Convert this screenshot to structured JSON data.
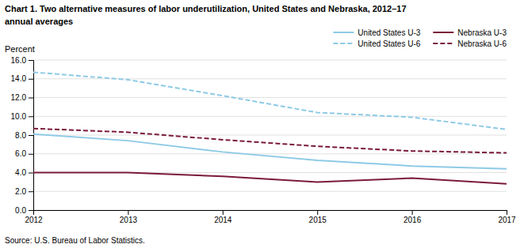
{
  "chart_data": {
    "type": "line",
    "title": "Chart 1. Two alternative measures of labor underutilization, United States and Nebraska, 2012–17",
    "subtitle": "annual averages",
    "ylabel": "Percent",
    "annotations": [
      "Source: U.S. Bureau of Labor Statistics."
    ],
    "x": [
      2012,
      2013,
      2014,
      2015,
      2016,
      2017
    ],
    "xlim": [
      2012,
      2017
    ],
    "xticks": [
      2012,
      2013,
      2014,
      2015,
      2016,
      2017
    ],
    "ylim": [
      0.0,
      16.0
    ],
    "yticks": [
      {
        "value": 0.0,
        "label": "0.0"
      },
      {
        "value": 2.0,
        "label": "2.0"
      },
      {
        "value": 4.0,
        "label": "4.0"
      },
      {
        "value": 6.0,
        "label": "6.0"
      },
      {
        "value": 8.0,
        "label": "8.0"
      },
      {
        "value": 10.0,
        "label": "10.0"
      },
      {
        "value": 12.0,
        "label": "12.0"
      },
      {
        "value": 14.0,
        "label": "14.0"
      },
      {
        "value": 16.0,
        "label": "16.0"
      }
    ],
    "grid": true,
    "legend": "upper right",
    "series": [
      {
        "name": "United States  U-3",
        "color": "#8ecae6",
        "line_style": "solid",
        "values": [
          8.1,
          7.4,
          6.2,
          5.3,
          4.7,
          4.4
        ]
      },
      {
        "name": "United States  U-6",
        "color": "#8ecae6",
        "line_style": "dashed",
        "values": [
          14.7,
          13.9,
          12.2,
          10.4,
          9.9,
          8.6
        ]
      },
      {
        "name": "Nebraska  U-3",
        "color": "#7b1a3a",
        "line_style": "solid",
        "values": [
          4.0,
          4.0,
          3.6,
          3.0,
          3.4,
          2.8
        ]
      },
      {
        "name": "Nebraska  U-6",
        "color": "#7b1a3a",
        "line_style": "dashed",
        "values": [
          8.7,
          8.3,
          7.5,
          6.8,
          6.3,
          6.1
        ]
      }
    ]
  }
}
